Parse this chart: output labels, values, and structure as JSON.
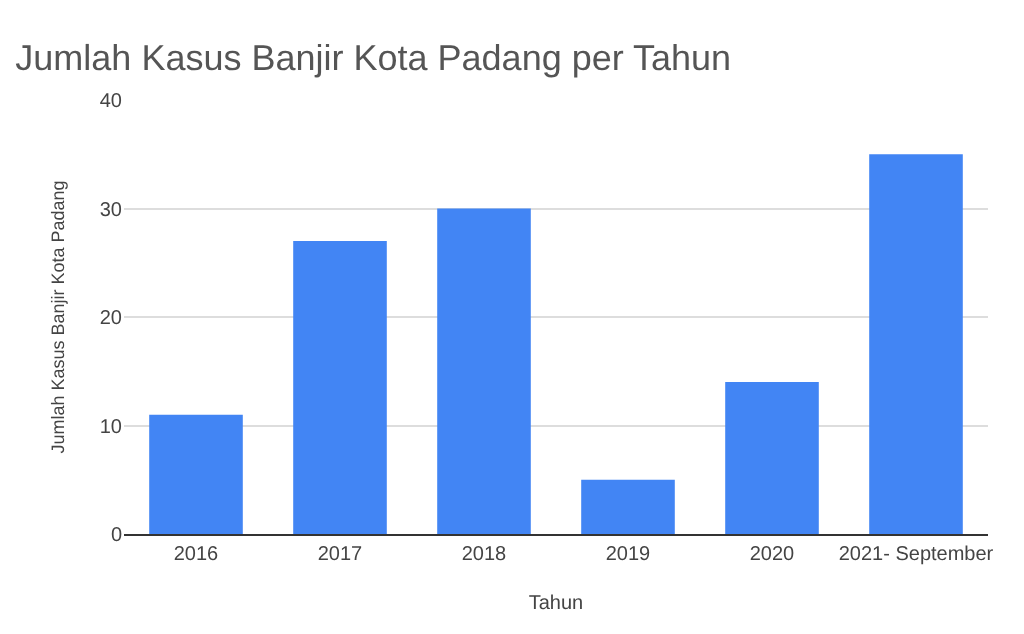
{
  "chart_data": {
    "type": "bar",
    "title": "Jumlah Kasus Banjir Kota Padang per Tahun",
    "xlabel": "Tahun",
    "ylabel": "Jumlah Kasus Banjir Kota Padang",
    "categories": [
      "2016",
      "2017",
      "2018",
      "2019",
      "2020",
      "2021- September"
    ],
    "values": [
      11,
      27,
      30,
      5,
      14,
      35
    ],
    "color": "#4285f4",
    "ylim": [
      0,
      40
    ],
    "yticks": [
      0,
      10,
      20,
      30,
      40
    ],
    "grid": "y"
  }
}
